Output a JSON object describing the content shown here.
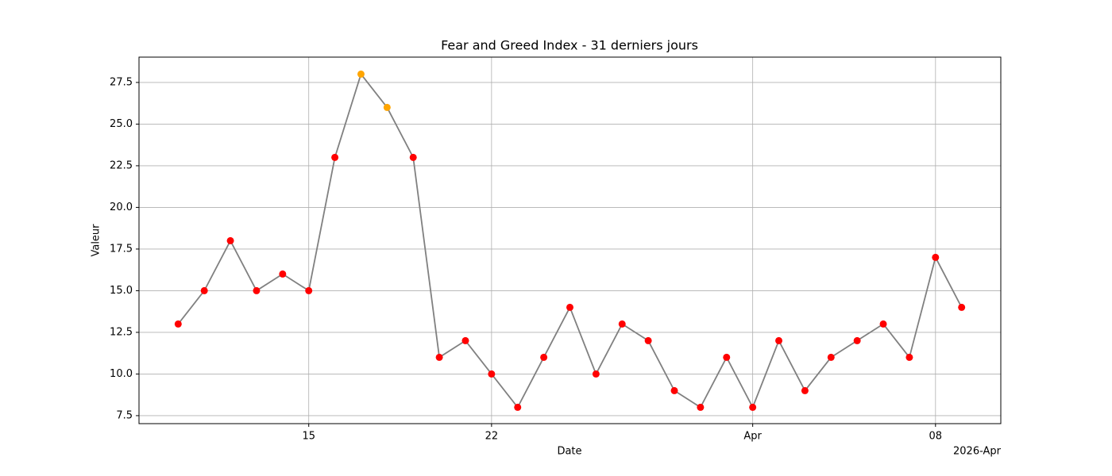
{
  "chart_data": {
    "type": "line",
    "title": "Fear and Greed Index - 31 derniers jours",
    "xlabel": "Date",
    "ylabel": "Valeur",
    "x_offset_label": "2026-Apr",
    "x": [
      "2026-03-10",
      "2026-03-11",
      "2026-03-12",
      "2026-03-13",
      "2026-03-14",
      "2026-03-15",
      "2026-03-16",
      "2026-03-17",
      "2026-03-18",
      "2026-03-19",
      "2026-03-20",
      "2026-03-21",
      "2026-03-22",
      "2026-03-23",
      "2026-03-24",
      "2026-03-25",
      "2026-03-26",
      "2026-03-27",
      "2026-03-28",
      "2026-03-29",
      "2026-03-30",
      "2026-03-31",
      "2026-04-01",
      "2026-04-02",
      "2026-04-03",
      "2026-04-04",
      "2026-04-05",
      "2026-04-06",
      "2026-04-07",
      "2026-04-08",
      "2026-04-09"
    ],
    "series": [
      {
        "color": "#808080",
        "values": [
          13,
          15,
          18,
          15,
          16,
          15,
          23,
          28,
          26,
          23,
          11,
          12,
          10,
          8,
          11,
          14,
          10,
          13,
          12,
          9,
          8,
          11,
          8,
          12,
          9,
          11,
          12,
          13,
          11,
          17,
          14
        ],
        "point_colors": [
          "#ff0000",
          "#ff0000",
          "#ff0000",
          "#ff0000",
          "#ff0000",
          "#ff0000",
          "#ff0000",
          "#ffa500",
          "#ffa500",
          "#ff0000",
          "#ff0000",
          "#ff0000",
          "#ff0000",
          "#ff0000",
          "#ff0000",
          "#ff0000",
          "#ff0000",
          "#ff0000",
          "#ff0000",
          "#ff0000",
          "#ff0000",
          "#ff0000",
          "#ff0000",
          "#ff0000",
          "#ff0000",
          "#ff0000",
          "#ff0000",
          "#ff0000",
          "#ff0000",
          "#ff0000",
          "#ff0000"
        ]
      }
    ],
    "xlim": [
      "2026-03-08T12:00Z",
      "2026-04-10T12:00Z"
    ],
    "xticks": [
      {
        "value": "2026-03-15",
        "label": "15"
      },
      {
        "value": "2026-03-22",
        "label": "22"
      },
      {
        "value": "2026-04-01",
        "label": "Apr"
      },
      {
        "value": "2026-04-08",
        "label": "08"
      }
    ],
    "ylim": [
      7.02,
      29.02
    ],
    "yticks": [
      7.5,
      {
        "value": 10,
        "label": "10.0"
      },
      12.5,
      {
        "value": 15,
        "label": "15.0"
      },
      17.5,
      {
        "value": 20,
        "label": "20.0"
      },
      22.5,
      {
        "value": 25,
        "label": "25.0"
      },
      27.5
    ],
    "grid": true
  }
}
